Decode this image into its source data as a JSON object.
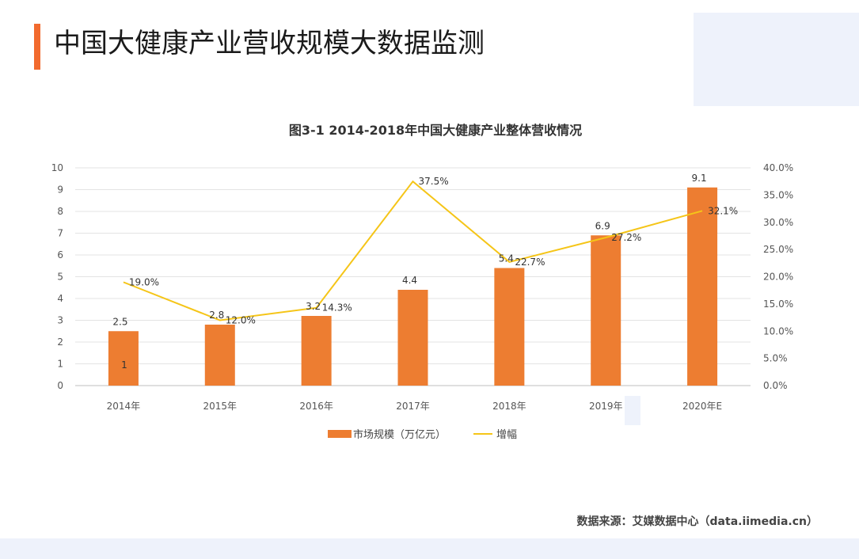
{
  "page": {
    "title": "中国大健康产业营收规模大数据监测",
    "source": "数据来源：艾媒数据中心（data.iimedia.cn）",
    "colors": {
      "accent": "#f26a2e",
      "bar": "#ed7d31",
      "line": "#f5c518",
      "panel": "#eef2fb"
    }
  },
  "chart_data": {
    "type": "bar",
    "title": "图3-1 2014-2018年中国大健康产业整体营收情况",
    "categories": [
      "2014年",
      "2015年",
      "2016年",
      "2017年",
      "2018年",
      "2019年",
      "2020年E"
    ],
    "series": [
      {
        "name": "市场规模（万亿元）",
        "type": "bar",
        "axis": "left",
        "values": [
          2.5,
          2.8,
          3.2,
          4.4,
          5.4,
          6.9,
          9.1
        ],
        "labels": [
          "2.5",
          "2.8",
          "3.2",
          "4.4",
          "5.4",
          "6.9",
          "9.1"
        ]
      },
      {
        "name": "增幅",
        "type": "line",
        "axis": "right",
        "values": [
          19.0,
          12.0,
          14.3,
          37.5,
          22.7,
          27.2,
          32.1
        ],
        "labels": [
          "19.0%",
          "12.0%",
          "14.3%",
          "37.5%",
          "22.7%",
          "27.2%",
          "32.1%"
        ]
      }
    ],
    "y_left": {
      "range": [
        0,
        10
      ],
      "ticks": [
        "0",
        "1",
        "2",
        "3",
        "4",
        "5",
        "6",
        "7",
        "8",
        "9",
        "10"
      ]
    },
    "y_right": {
      "range": [
        0,
        40
      ],
      "ticks": [
        "0.0%",
        "5.0%",
        "10.0%",
        "15.0%",
        "20.0%",
        "25.0%",
        "30.0%",
        "35.0%",
        "40.0%"
      ]
    },
    "stray_label": "1",
    "grid": true,
    "legend": "bottom"
  }
}
